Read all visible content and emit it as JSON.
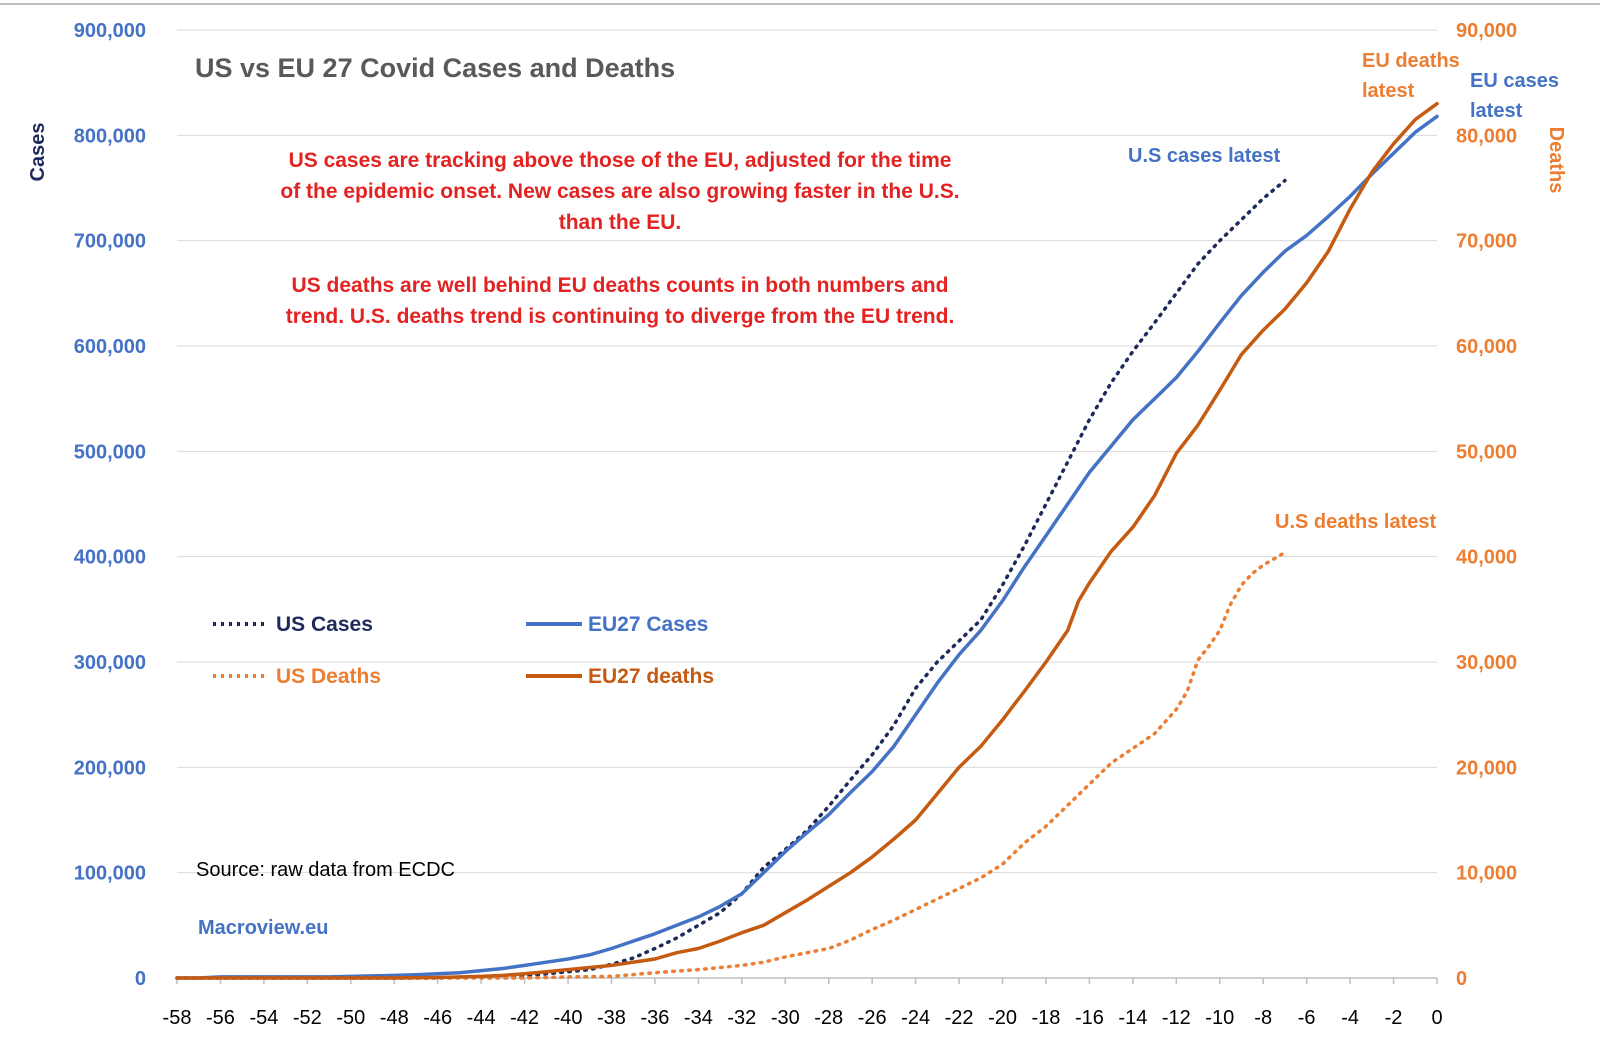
{
  "chart_data": {
    "type": "line",
    "title": "US vs EU 27 Covid Cases and Deaths",
    "ylabel": "Cases",
    "y2label": "Deaths",
    "xlim": [
      -58,
      0
    ],
    "ylim": [
      0,
      900000
    ],
    "y2lim": [
      0,
      90000
    ],
    "x_ticks": [
      -58,
      -56,
      -54,
      -52,
      -50,
      -48,
      -46,
      -44,
      -42,
      -40,
      -38,
      -36,
      -34,
      -32,
      -30,
      -28,
      -26,
      -24,
      -22,
      -20,
      -18,
      -16,
      -14,
      -12,
      -10,
      -8,
      -6,
      -4,
      -2,
      0
    ],
    "y_ticks": [
      "0",
      "100,000",
      "200,000",
      "300,000",
      "400,000",
      "500,000",
      "600,000",
      "700,000",
      "800,000",
      "900,000"
    ],
    "y2_ticks": [
      "0",
      "10,000",
      "20,000",
      "30,000",
      "40,000",
      "50,000",
      "60,000",
      "70,000",
      "80,000",
      "90,000"
    ],
    "grid": true,
    "colors": {
      "us_cases": "#1f2a5c",
      "eu_cases": "#4472c4",
      "us_deaths": "#ed7d31",
      "eu_deaths": "#c55a11",
      "annotation": "#e32222",
      "left_axis": "#4472c4",
      "right_axis": "#ed7d31"
    },
    "series": [
      {
        "name": "US Cases",
        "axis": "left",
        "style": "dotted",
        "color": "#1f2a5c",
        "x": [
          -58,
          -56,
          -54,
          -52,
          -50,
          -48,
          -46,
          -44,
          -42,
          -40,
          -39,
          -38,
          -37,
          -36,
          -35,
          -34,
          -33,
          -32,
          -31,
          -30,
          -29,
          -28,
          -27,
          -26,
          -25,
          -24,
          -23,
          -22,
          -21,
          -20,
          -19,
          -18,
          -17,
          -16,
          -15,
          -14,
          -13,
          -12,
          -11,
          -10,
          -9,
          -8,
          -7
        ],
        "values": [
          0,
          0,
          0,
          0,
          0,
          0,
          0,
          1000,
          2000,
          6000,
          8000,
          13000,
          19000,
          28000,
          38000,
          50000,
          62000,
          80000,
          105000,
          122000,
          140000,
          163000,
          188000,
          212000,
          240000,
          275000,
          300000,
          320000,
          340000,
          373000,
          410000,
          450000,
          490000,
          530000,
          565000,
          595000,
          622000,
          650000,
          678000,
          700000,
          720000,
          740000,
          757000
        ]
      },
      {
        "name": "EU27 Cases",
        "axis": "left",
        "style": "solid",
        "color": "#4472c4",
        "x": [
          -58,
          -57,
          -56,
          -55,
          -54,
          -53,
          -52,
          -51,
          -50,
          -49,
          -48,
          -47,
          -46,
          -45,
          -44,
          -43,
          -42,
          -41,
          -40,
          -39,
          -38,
          -37,
          -36,
          -35,
          -34,
          -33,
          -32,
          -31,
          -30,
          -29,
          -28,
          -27,
          -26,
          -25,
          -24,
          -23,
          -22,
          -21,
          -20,
          -19,
          -18,
          -17,
          -16,
          -15,
          -14,
          -13,
          -12,
          -11,
          -10,
          -9,
          -8,
          -7,
          -6,
          -5,
          -4,
          -3,
          -2,
          -1,
          0
        ],
        "values": [
          0,
          0,
          1000,
          1000,
          1000,
          1000,
          1000,
          1000,
          1500,
          2000,
          2500,
          3000,
          4000,
          5000,
          7000,
          9000,
          12000,
          15000,
          18000,
          22000,
          28000,
          35000,
          42000,
          50000,
          58000,
          68000,
          80000,
          100000,
          120000,
          138000,
          155000,
          176000,
          196000,
          220000,
          250000,
          280000,
          307000,
          330000,
          358000,
          390000,
          420000,
          450000,
          480000,
          505000,
          530000,
          550000,
          570000,
          595000,
          622000,
          648000,
          670000,
          690000,
          705000,
          723000,
          742000,
          763000,
          783000,
          803000,
          818000
        ]
      },
      {
        "name": "US Deaths",
        "axis": "right",
        "style": "dotted",
        "color": "#ed7d31",
        "x": [
          -58,
          -50,
          -46,
          -44,
          -42,
          -40,
          -38,
          -36,
          -34,
          -33,
          -32,
          -31,
          -30,
          -29,
          -28,
          -27,
          -26,
          -25,
          -24,
          -23,
          -22,
          -21,
          -20,
          -19,
          -18,
          -17,
          -16,
          -15,
          -14,
          -13,
          -12,
          -11.5,
          -11,
          -10.5,
          -10,
          -9.5,
          -9,
          -8.5,
          -8,
          -7.5,
          -7
        ],
        "values": [
          0,
          0,
          0,
          0,
          0,
          100,
          150,
          500,
          800,
          1000,
          1200,
          1500,
          2000,
          2400,
          2800,
          3600,
          4600,
          5500,
          6500,
          7500,
          8500,
          9500,
          10800,
          12800,
          14400,
          16400,
          18400,
          20400,
          21800,
          23200,
          25500,
          27200,
          30200,
          31500,
          33000,
          35500,
          37300,
          38400,
          39200,
          39800,
          40400
        ]
      },
      {
        "name": "EU27 deaths",
        "axis": "right",
        "style": "solid",
        "color": "#c55a11",
        "x": [
          -58,
          -56,
          -54,
          -52,
          -50,
          -48,
          -46,
          -44,
          -43,
          -42,
          -41,
          -40,
          -39,
          -38,
          -37,
          -36,
          -35,
          -34,
          -33,
          -32,
          -31,
          -30,
          -29,
          -28,
          -27,
          -26,
          -25,
          -24,
          -23,
          -22,
          -21,
          -20,
          -19,
          -18,
          -17,
          -16.5,
          -16,
          -15,
          -14,
          -13,
          -12,
          -11,
          -10,
          -9,
          -8,
          -7,
          -6,
          -5,
          -4,
          -3,
          -2,
          -1,
          0
        ],
        "values": [
          0,
          0,
          0,
          0,
          0,
          0,
          50,
          150,
          250,
          400,
          600,
          800,
          1000,
          1200,
          1500,
          1800,
          2400,
          2800,
          3500,
          4300,
          5000,
          6200,
          7400,
          8700,
          10000,
          11500,
          13200,
          15000,
          17500,
          20000,
          22000,
          24500,
          27200,
          30000,
          33000,
          35800,
          37500,
          40500,
          42800,
          45800,
          49800,
          52500,
          55800,
          59200,
          61500,
          63500,
          66000,
          69000,
          73000,
          76500,
          79200,
          81500,
          83000
        ]
      }
    ],
    "legend": [
      {
        "label": "US Cases",
        "series": "US Cases"
      },
      {
        "label": "EU27 Cases",
        "series": "EU27 Cases"
      },
      {
        "label": "US Deaths",
        "series": "US Deaths"
      },
      {
        "label": "EU27 deaths",
        "series": "EU27 deaths"
      }
    ],
    "annotations": {
      "cases_paragraph": [
        "US cases are tracking above those of the EU, adjusted for the time",
        "of the epidemic onset. New cases are also growing faster in the U.S.",
        "than the EU."
      ],
      "deaths_paragraph": [
        "US deaths are well behind EU deaths counts in both numbers and",
        "trend. U.S. deaths trend is continuing to diverge from the EU trend."
      ],
      "us_cases_latest": "U.S cases latest",
      "us_deaths_latest": "U.S deaths latest",
      "eu_deaths_latest": [
        "EU deaths",
        "latest"
      ],
      "eu_cases_latest": [
        "EU cases",
        "latest"
      ],
      "source": "Source: raw data from ECDC",
      "brand": "Macroview.eu"
    }
  }
}
